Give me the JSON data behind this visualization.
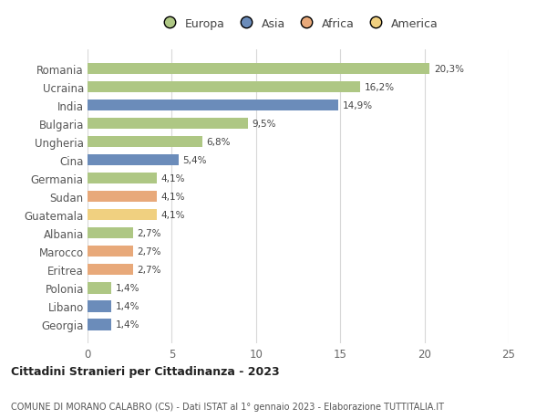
{
  "categories": [
    "Romania",
    "Ucraina",
    "India",
    "Bulgaria",
    "Ungheria",
    "Cina",
    "Germania",
    "Sudan",
    "Guatemala",
    "Albania",
    "Marocco",
    "Eritrea",
    "Polonia",
    "Libano",
    "Georgia"
  ],
  "values": [
    20.3,
    16.2,
    14.9,
    9.5,
    6.8,
    5.4,
    4.1,
    4.1,
    4.1,
    2.7,
    2.7,
    2.7,
    1.4,
    1.4,
    1.4
  ],
  "labels": [
    "20,3%",
    "16,2%",
    "14,9%",
    "9,5%",
    "6,8%",
    "5,4%",
    "4,1%",
    "4,1%",
    "4,1%",
    "2,7%",
    "2,7%",
    "2,7%",
    "1,4%",
    "1,4%",
    "1,4%"
  ],
  "colors": [
    "#aec784",
    "#aec784",
    "#6b8cba",
    "#aec784",
    "#aec784",
    "#6b8cba",
    "#aec784",
    "#e8a97a",
    "#f0d080",
    "#aec784",
    "#e8a97a",
    "#e8a97a",
    "#aec784",
    "#6b8cba",
    "#6b8cba"
  ],
  "legend_labels": [
    "Europa",
    "Asia",
    "Africa",
    "America"
  ],
  "legend_colors": [
    "#aec784",
    "#6b8cba",
    "#e8a97a",
    "#f0d080"
  ],
  "xlim": [
    0,
    25
  ],
  "xticks": [
    0,
    5,
    10,
    15,
    20,
    25
  ],
  "title": "Cittadini Stranieri per Cittadinanza - 2023",
  "subtitle": "COMUNE DI MORANO CALABRO (CS) - Dati ISTAT al 1° gennaio 2023 - Elaborazione TUTTITALIA.IT",
  "background_color": "#ffffff",
  "bar_height": 0.62,
  "figsize": [
    6.0,
    4.6
  ],
  "dpi": 100
}
